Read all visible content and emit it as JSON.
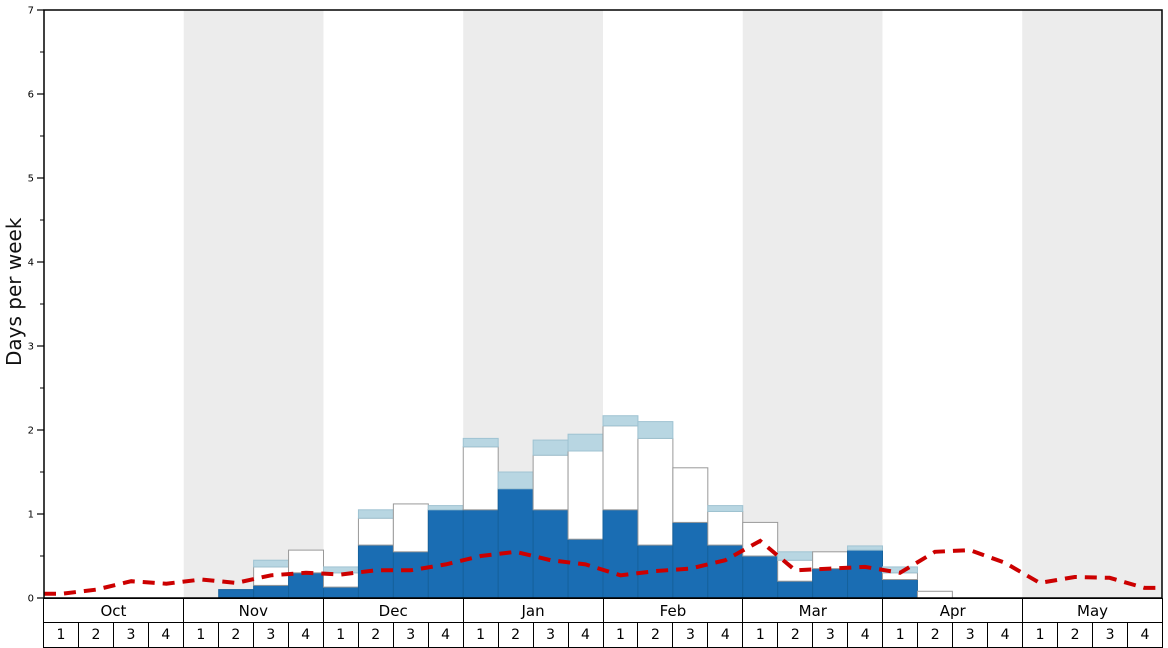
{
  "chart_data": {
    "type": "bar",
    "subtype": "stacked-bars-with-dashed-line",
    "title": "",
    "ylabel": "Days per week",
    "ylim": [
      0,
      7
    ],
    "yticks": [
      0,
      1,
      2,
      3,
      4,
      5,
      6,
      7
    ],
    "minor_tick_step": 0.5,
    "grid": false,
    "legend": "none",
    "months": [
      {
        "name": "Oct",
        "shaded": false
      },
      {
        "name": "Nov",
        "shaded": true
      },
      {
        "name": "Dec",
        "shaded": false
      },
      {
        "name": "Jan",
        "shaded": true
      },
      {
        "name": "Feb",
        "shaded": false
      },
      {
        "name": "Mar",
        "shaded": true
      },
      {
        "name": "Apr",
        "shaded": false
      },
      {
        "name": "May",
        "shaded": true
      }
    ],
    "week_labels": [
      "1",
      "2",
      "3",
      "4"
    ],
    "colors": {
      "background": "#ffffff",
      "band": "#ececec",
      "axis": "#000000"
    },
    "series": [
      {
        "name": "dark-blue-bars",
        "type": "bar",
        "color": "#1a6db3",
        "stroke": "#15619c",
        "values": [
          0,
          0,
          0,
          0,
          0,
          0.1,
          0.15,
          0.3,
          0.13,
          0.63,
          0.55,
          1.05,
          1.05,
          1.3,
          1.05,
          0.7,
          1.05,
          0.63,
          0.9,
          0.63,
          0.5,
          0.2,
          0.35,
          0.57,
          0.22,
          0,
          0,
          0,
          0,
          0,
          0,
          0
        ]
      },
      {
        "name": "white-bars",
        "type": "bar",
        "color": "#ffffff",
        "stroke": "#999999",
        "values": [
          0,
          0,
          0,
          0,
          0,
          0,
          0.22,
          0.27,
          0.17,
          0.32,
          0.57,
          0,
          0.75,
          0,
          0.65,
          1.05,
          1.0,
          1.27,
          0.65,
          0.4,
          0.4,
          0.25,
          0.2,
          0,
          0.08,
          0.08,
          0,
          0,
          0,
          0,
          0,
          0
        ]
      },
      {
        "name": "light-blue-bars",
        "type": "bar",
        "color": "#b8d6e2",
        "stroke": "#9fc3d2",
        "values": [
          0,
          0,
          0,
          0,
          0,
          0,
          0.08,
          0,
          0.07,
          0.1,
          0,
          0.05,
          0.1,
          0.2,
          0.18,
          0.2,
          0.12,
          0.2,
          0,
          0.07,
          0,
          0.1,
          0,
          0.05,
          0.07,
          0,
          0,
          0,
          0,
          0,
          0,
          0
        ]
      },
      {
        "name": "red-dashed-line",
        "type": "line",
        "color": "#cc0000",
        "dash": "12 8",
        "width": 4,
        "values": [
          0.05,
          0.1,
          0.2,
          0.17,
          0.22,
          0.18,
          0.27,
          0.3,
          0.28,
          0.33,
          0.33,
          0.4,
          0.5,
          0.55,
          0.45,
          0.4,
          0.27,
          0.32,
          0.35,
          0.45,
          0.68,
          0.33,
          0.35,
          0.37,
          0.3,
          0.55,
          0.57,
          0.42,
          0.18,
          0.25,
          0.24,
          0.12
        ]
      }
    ]
  }
}
